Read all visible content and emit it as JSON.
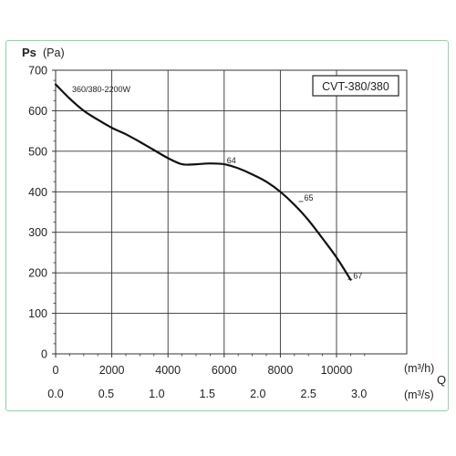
{
  "chart_data": {
    "type": "line",
    "title": "CVT-380/380",
    "ylabel": {
      "main": "Ps",
      "unit": "(Pa)"
    },
    "xlabel": "Q",
    "x_unit_top": "(m³/h)",
    "x_unit_bottom": "(m³/s)",
    "xlim": [
      0,
      12500
    ],
    "ylim": [
      0,
      700
    ],
    "yticks": [
      0,
      100,
      200,
      300,
      400,
      500,
      600,
      700
    ],
    "xticks_top": [
      "0",
      "2000",
      "4000",
      "6000",
      "8000",
      "10000"
    ],
    "xticks_top_values": [
      0,
      2000,
      4000,
      6000,
      8000,
      10000
    ],
    "xticks_bottom": [
      "0.0",
      "0.5",
      "1.0",
      "1.5",
      "2.0",
      "2.5",
      "3.0"
    ],
    "xticks_bottom_values": [
      0,
      1800,
      3600,
      5400,
      7200,
      9000,
      10800
    ],
    "grid": true,
    "series": [
      {
        "label": "360/380-2200W",
        "color": "#111111",
        "x": [
          0,
          500,
          1000,
          1500,
          2000,
          2500,
          3000,
          3500,
          4000,
          4500,
          5000,
          5500,
          6000,
          6500,
          7000,
          7500,
          8000,
          8500,
          9000,
          9500,
          10000,
          10500
        ],
        "y": [
          665,
          630,
          600,
          578,
          558,
          542,
          523,
          503,
          483,
          468,
          468,
          470,
          468,
          458,
          443,
          425,
          400,
          368,
          330,
          285,
          238,
          183
        ]
      }
    ],
    "annotations": [
      {
        "text": "64",
        "x": 6000,
        "y": 477
      },
      {
        "text": "65",
        "x": 8750,
        "y": 385
      },
      {
        "text": "67",
        "x": 10500,
        "y": 193
      }
    ]
  }
}
